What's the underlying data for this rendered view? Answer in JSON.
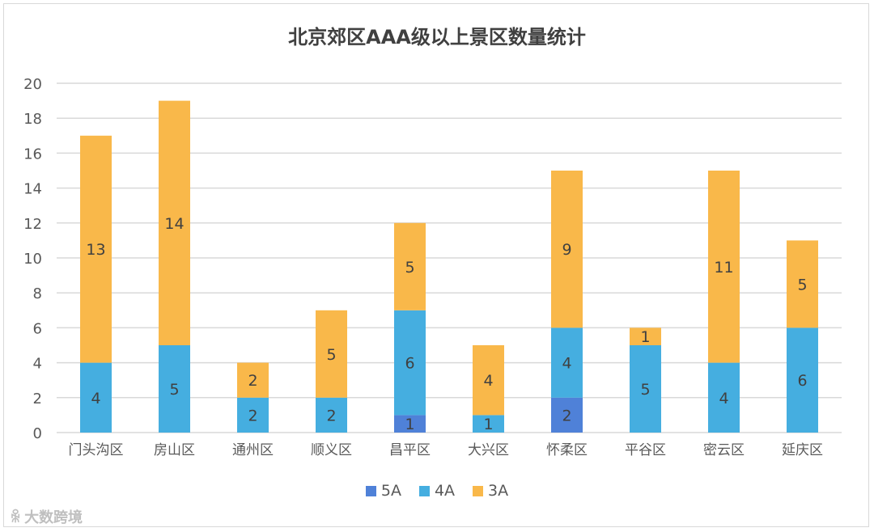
{
  "chart_data": {
    "type": "bar",
    "stacked": true,
    "title": "北京郊区AAA级以上景区数量统计",
    "categories": [
      "门头沟区",
      "房山区",
      "通州区",
      "顺义区",
      "昌平区",
      "大兴区",
      "怀柔区",
      "平谷区",
      "密云区",
      "延庆区"
    ],
    "series": [
      {
        "name": "5A",
        "color": "#4f81d8",
        "values": [
          0,
          0,
          0,
          0,
          1,
          0,
          2,
          0,
          0,
          0
        ]
      },
      {
        "name": "4A",
        "color": "#45aee0",
        "values": [
          4,
          5,
          2,
          2,
          6,
          1,
          4,
          5,
          4,
          6
        ]
      },
      {
        "name": "3A",
        "color": "#f9b84a",
        "values": [
          13,
          14,
          2,
          5,
          5,
          4,
          9,
          1,
          11,
          5
        ]
      }
    ],
    "ylim": [
      0,
      20
    ],
    "yticks": [
      0,
      2,
      4,
      6,
      8,
      10,
      12,
      14,
      16,
      18,
      20
    ],
    "grid": true,
    "legend_position": "bottom"
  },
  "watermark": {
    "text": "大数跨境",
    "icon": "weibo-icon"
  }
}
